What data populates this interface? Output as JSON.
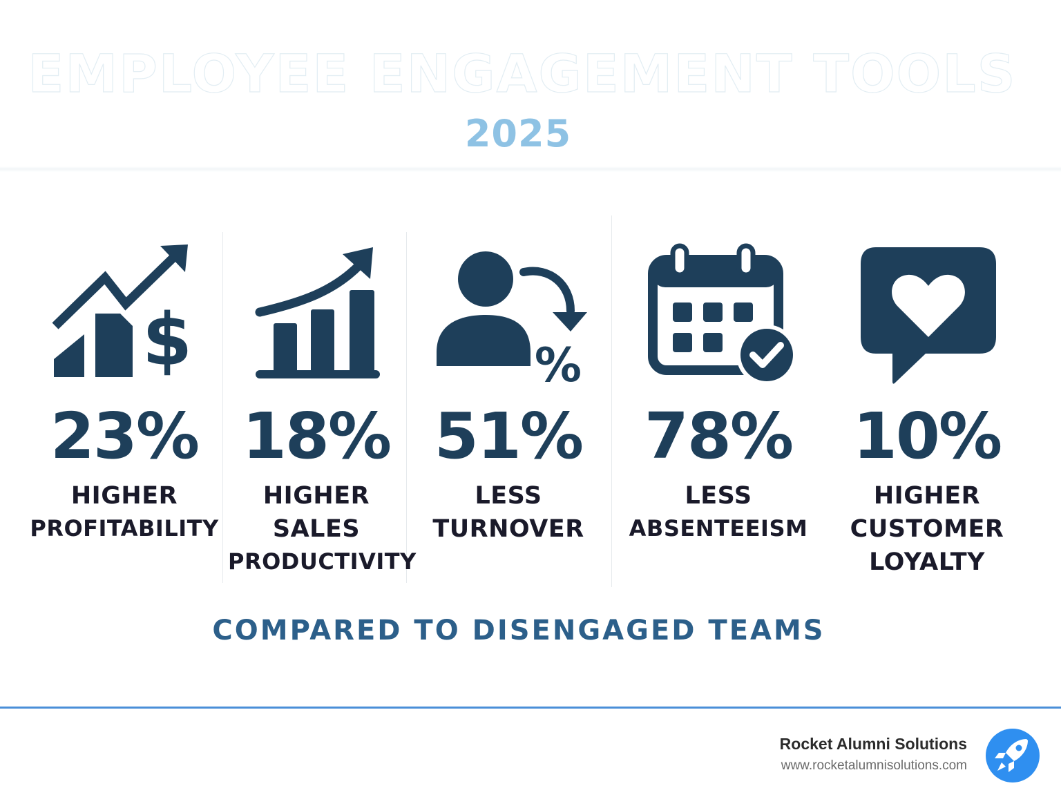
{
  "header": {
    "title": "EMPLOYEE ENGAGEMENT TOOLS",
    "year": "2025"
  },
  "stats": [
    {
      "value": "23%",
      "label_lines": [
        "HIGHER",
        "PROFITABILITY"
      ],
      "icon": "profit-chart-dollar-icon"
    },
    {
      "value": "18%",
      "label_lines": [
        "HIGHER",
        "SALES",
        "PRODUCTIVITY"
      ],
      "icon": "sales-growth-chart-icon"
    },
    {
      "value": "51%",
      "label_lines": [
        "LESS",
        "TURNOVER"
      ],
      "icon": "person-turnover-percent-icon"
    },
    {
      "value": "78%",
      "label_lines": [
        "LESS",
        "ABSENTEEISM"
      ],
      "icon": "calendar-check-icon"
    },
    {
      "value": "10%",
      "label_lines": [
        "HIGHER",
        "CUSTOMER",
        "LOYALTY"
      ],
      "icon": "heart-speech-bubble-icon"
    }
  ],
  "comparison_note": "COMPARED TO DISENGAGED TEAMS",
  "footer": {
    "company": "Rocket Alumni Solutions",
    "url": "www.rocketalumnisolutions.com",
    "logo_icon": "rocket-icon"
  },
  "colors": {
    "icon_navy": "#1e3f5a",
    "year_blue": "#8ec2e4",
    "note_blue": "#2c5f8a",
    "footer_line": "#4a8fd8",
    "logo_blue": "#2f8ff0"
  }
}
